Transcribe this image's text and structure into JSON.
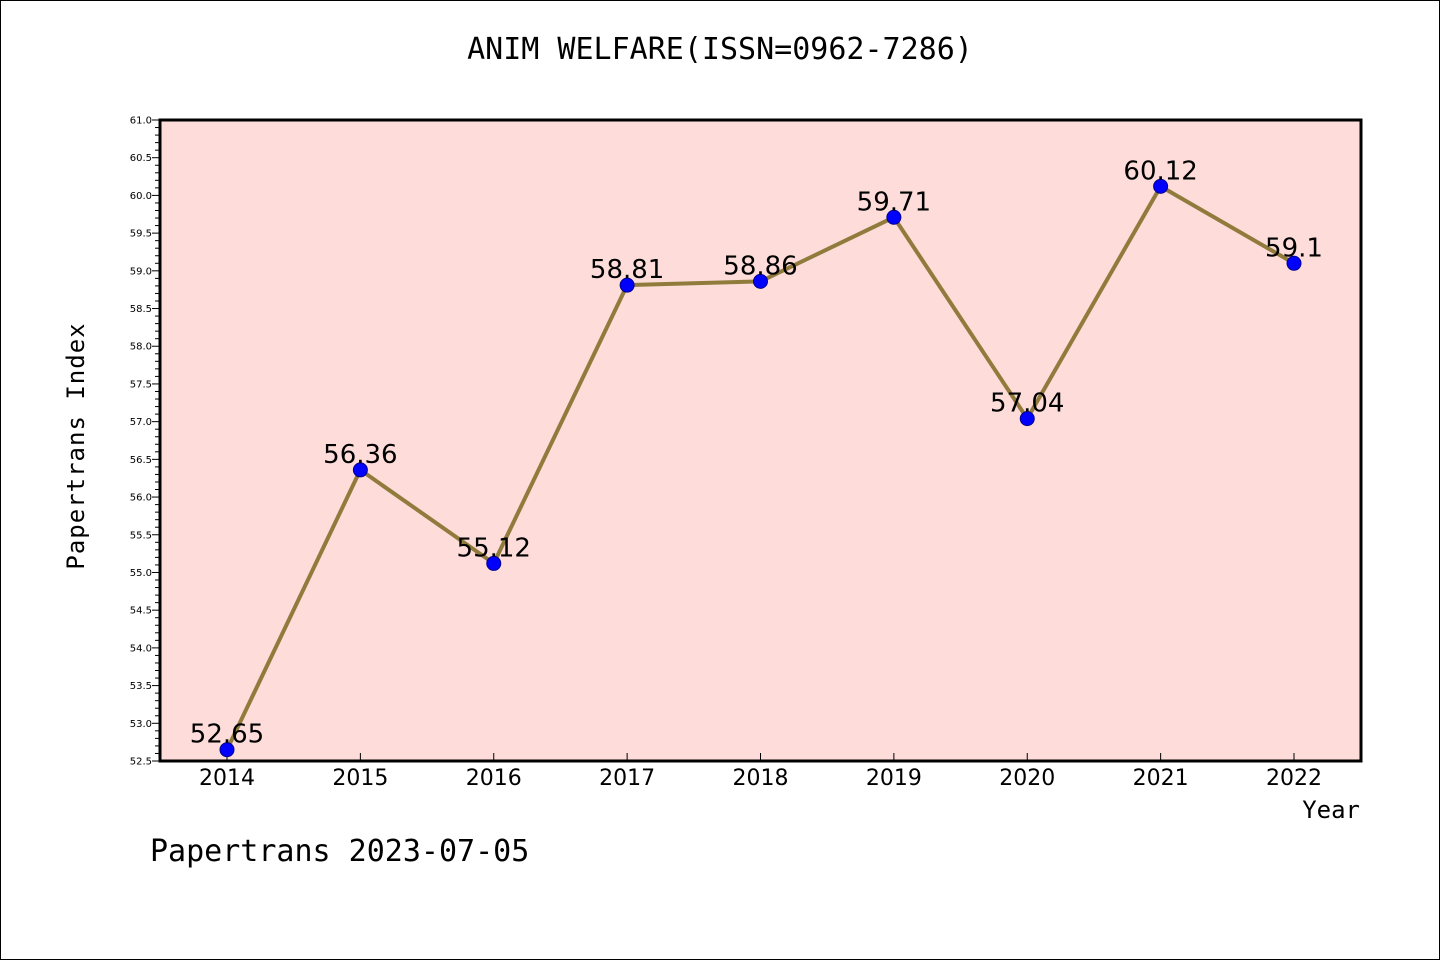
{
  "title": "ANIM WELFARE(ISSN=0962-7286)",
  "footer": "Papertrans 2023-07-05",
  "colors": {
    "plot_background": "#fddcd9",
    "line": "#917b3c",
    "marker": "#0000ff",
    "marker_edge": "#00008b"
  },
  "chart_data": {
    "type": "line",
    "x": [
      "2014",
      "2015",
      "2016",
      "2017",
      "2018",
      "2019",
      "2020",
      "2021",
      "2022"
    ],
    "series": [
      {
        "values": [
          52.65,
          56.36,
          55.12,
          58.81,
          58.86,
          59.71,
          57.04,
          60.12,
          59.1
        ],
        "value_labels": [
          "52.65",
          "56.36",
          "55.12",
          "58.81",
          "58.86",
          "59.71",
          "57.04",
          "60.12",
          "59.1"
        ]
      }
    ],
    "xlabel": "Year",
    "ylabel": "Papertrans Index",
    "ylim": [
      52.5,
      61.0
    ],
    "yticks": [
      "52.5",
      "53.0",
      "53.5",
      "54.0",
      "54.5",
      "55.0",
      "55.5",
      "56.0",
      "56.5",
      "57.0",
      "57.5",
      "58.0",
      "58.5",
      "59.0",
      "59.5",
      "60.0",
      "60.5",
      "61.0"
    ],
    "grid": false,
    "legend": "none"
  }
}
